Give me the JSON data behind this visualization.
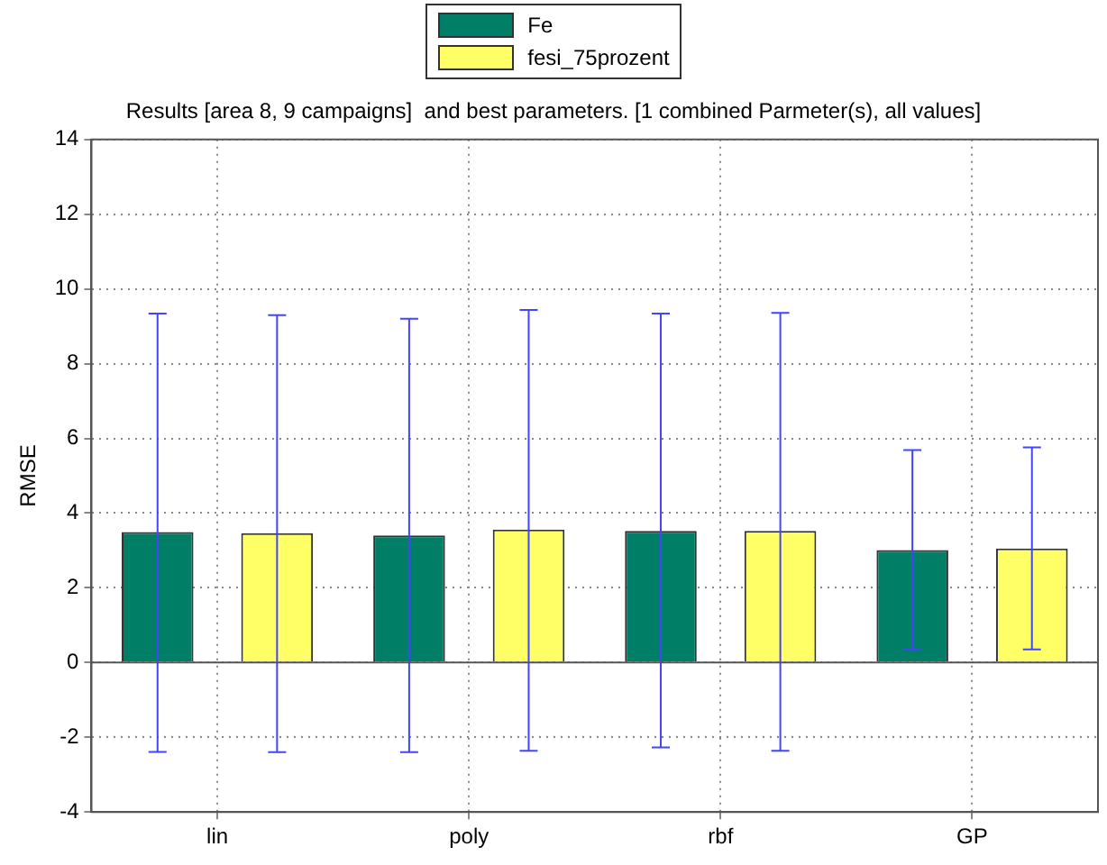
{
  "chart_data": {
    "type": "bar",
    "title": "Results [area 8, 9 campaigns]  and best parameters. [1 combined Parmeter(s), all values]",
    "ylabel": "RMSE",
    "categories": [
      "lin",
      "poly",
      "rbf",
      "GP"
    ],
    "series": [
      {
        "name": "Fe",
        "color": "#007f66",
        "values": [
          3.49,
          3.4,
          3.52,
          3.01
        ],
        "errors": [
          [
            -2.39,
            9.34
          ],
          [
            -2.4,
            9.2
          ],
          [
            -2.27,
            9.34
          ],
          [
            0.35,
            5.69
          ]
        ]
      },
      {
        "name": "fesi_75prozent",
        "color": "#ffff66",
        "values": [
          3.46,
          3.56,
          3.52,
          3.05
        ],
        "errors": [
          [
            -2.4,
            9.3
          ],
          [
            -2.36,
            9.44
          ],
          [
            -2.36,
            9.36
          ],
          [
            0.35,
            5.76
          ]
        ]
      }
    ],
    "ylim": [
      -4,
      14
    ],
    "yticks": [
      -4,
      -2,
      0,
      2,
      4,
      6,
      8,
      10,
      12,
      14
    ],
    "grid": true,
    "legend": "top"
  }
}
